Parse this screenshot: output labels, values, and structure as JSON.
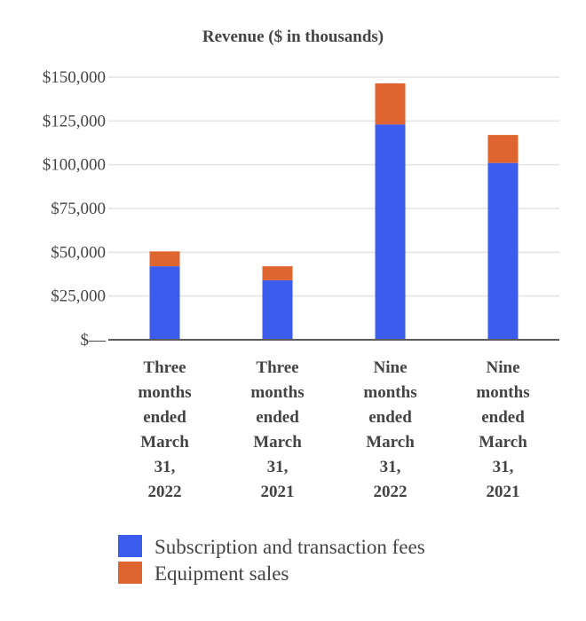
{
  "chart_data": {
    "type": "bar",
    "stacked": true,
    "title": "Revenue ($ in thousands)",
    "xlabel": "",
    "ylabel": "",
    "ylim": [
      0,
      150000
    ],
    "yticks": [
      {
        "value": 0,
        "label": "$—"
      },
      {
        "value": 25000,
        "label": "$25,000"
      },
      {
        "value": 50000,
        "label": "$50,000"
      },
      {
        "value": 75000,
        "label": "$75,000"
      },
      {
        "value": 100000,
        "label": "$100,000"
      },
      {
        "value": 125000,
        "label": "$125,000"
      },
      {
        "value": 150000,
        "label": "$150,000"
      }
    ],
    "categories": [
      [
        "Three",
        "months",
        "ended",
        "March",
        "31,",
        "2022"
      ],
      [
        "Three",
        "months",
        "ended",
        "March",
        "31,",
        "2021"
      ],
      [
        "Nine",
        "months",
        "ended",
        "March",
        "31,",
        "2022"
      ],
      [
        "Nine",
        "months",
        "ended",
        "March",
        "31,",
        "2021"
      ]
    ],
    "series": [
      {
        "name": "Subscription and transaction fees",
        "color": "#3b5ced",
        "values": [
          42000,
          34000,
          123000,
          101000
        ]
      },
      {
        "name": "Equipment sales",
        "color": "#de6530",
        "values": [
          8500,
          8000,
          23500,
          16000
        ]
      }
    ],
    "legend_position": "bottom-left",
    "grid": true
  }
}
